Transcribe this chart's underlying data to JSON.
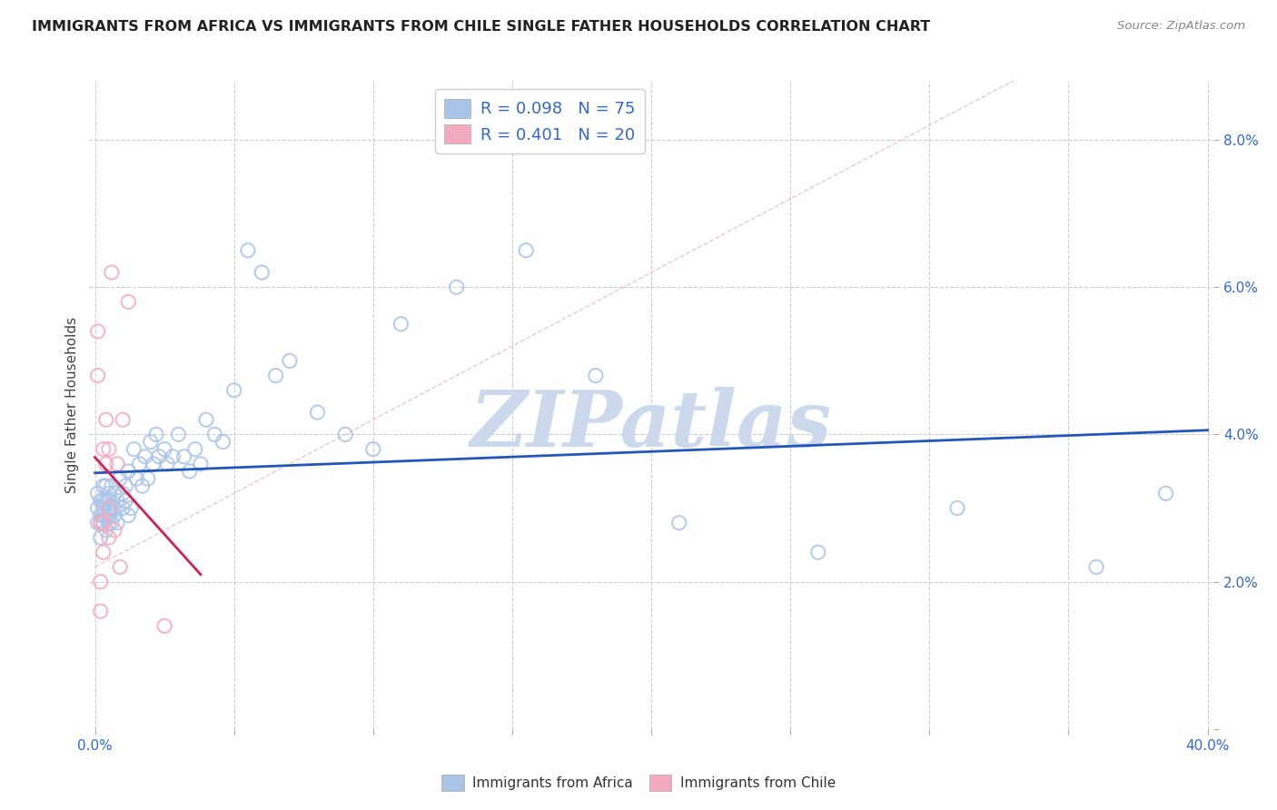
{
  "title": "IMMIGRANTS FROM AFRICA VS IMMIGRANTS FROM CHILE SINGLE FATHER HOUSEHOLDS CORRELATION CHART",
  "source": "Source: ZipAtlas.com",
  "ylabel": "Single Father Households",
  "xlim": [
    -0.002,
    0.402
  ],
  "ylim": [
    0.0,
    0.088
  ],
  "xticks": [
    0.0,
    0.05,
    0.1,
    0.15,
    0.2,
    0.25,
    0.3,
    0.35,
    0.4
  ],
  "yticks": [
    0.0,
    0.02,
    0.04,
    0.06,
    0.08
  ],
  "africa_color": "#aac4e8",
  "chile_color": "#f4aabe",
  "africa_line_color": "#2255bb",
  "chile_line_color": "#cc2255",
  "watermark_color": "#ccd8ec",
  "background_color": "#ffffff",
  "grid_color": "#cccccc",
  "legend_africa": "R = 0.098   N = 75",
  "legend_chile": "R = 0.401   N = 20",
  "africa_x": [
    0.001,
    0.001,
    0.001,
    0.002,
    0.002,
    0.002,
    0.002,
    0.003,
    0.003,
    0.003,
    0.003,
    0.003,
    0.004,
    0.004,
    0.004,
    0.004,
    0.005,
    0.005,
    0.005,
    0.005,
    0.005,
    0.006,
    0.006,
    0.006,
    0.007,
    0.007,
    0.007,
    0.008,
    0.008,
    0.009,
    0.01,
    0.01,
    0.011,
    0.011,
    0.012,
    0.012,
    0.013,
    0.014,
    0.015,
    0.016,
    0.017,
    0.018,
    0.019,
    0.02,
    0.021,
    0.022,
    0.023,
    0.025,
    0.026,
    0.028,
    0.03,
    0.032,
    0.034,
    0.036,
    0.038,
    0.04,
    0.043,
    0.046,
    0.05,
    0.055,
    0.06,
    0.065,
    0.07,
    0.08,
    0.09,
    0.1,
    0.11,
    0.13,
    0.155,
    0.18,
    0.21,
    0.26,
    0.31,
    0.36,
    0.385
  ],
  "africa_y": [
    0.03,
    0.028,
    0.032,
    0.026,
    0.029,
    0.031,
    0.028,
    0.031,
    0.029,
    0.033,
    0.028,
    0.03,
    0.031,
    0.029,
    0.027,
    0.033,
    0.03,
    0.028,
    0.031,
    0.029,
    0.032,
    0.033,
    0.03,
    0.028,
    0.03,
    0.032,
    0.029,
    0.031,
    0.028,
    0.034,
    0.032,
    0.03,
    0.031,
    0.033,
    0.035,
    0.029,
    0.03,
    0.038,
    0.034,
    0.036,
    0.033,
    0.037,
    0.034,
    0.039,
    0.036,
    0.04,
    0.037,
    0.038,
    0.036,
    0.037,
    0.04,
    0.037,
    0.035,
    0.038,
    0.036,
    0.042,
    0.04,
    0.039,
    0.046,
    0.065,
    0.062,
    0.048,
    0.05,
    0.043,
    0.04,
    0.038,
    0.055,
    0.06,
    0.065,
    0.048,
    0.028,
    0.024,
    0.03,
    0.022,
    0.032
  ],
  "chile_x": [
    0.001,
    0.001,
    0.002,
    0.002,
    0.002,
    0.003,
    0.003,
    0.003,
    0.004,
    0.004,
    0.005,
    0.005,
    0.005,
    0.006,
    0.007,
    0.008,
    0.009,
    0.01,
    0.012,
    0.025
  ],
  "chile_y": [
    0.054,
    0.048,
    0.028,
    0.02,
    0.016,
    0.028,
    0.024,
    0.038,
    0.042,
    0.036,
    0.03,
    0.026,
    0.038,
    0.062,
    0.027,
    0.036,
    0.022,
    0.042,
    0.058,
    0.014
  ]
}
